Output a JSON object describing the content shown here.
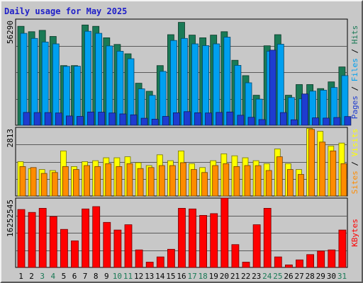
{
  "chart_data": {
    "type": "bar",
    "title": "Daily usage for May 2025",
    "categories": [
      "1",
      "2",
      "3",
      "4",
      "5",
      "6",
      "7",
      "8",
      "9",
      "10",
      "11",
      "12",
      "13",
      "14",
      "15",
      "16",
      "17",
      "18",
      "19",
      "20",
      "21",
      "22",
      "23",
      "24",
      "25",
      "26",
      "27",
      "28",
      "29",
      "30",
      "31"
    ],
    "weekend_days": [
      "3",
      "4",
      "10",
      "11",
      "17",
      "18",
      "24",
      "25",
      "31"
    ],
    "colors": {
      "hits": "#1a7a56",
      "files": "#00a0f0",
      "pages": "#1e3cd0",
      "visits": "#ffff00",
      "sites": "#ff8c00",
      "kbytes": "#ff0000",
      "weekday_label": "#000000",
      "weekend_label": "#1a7a56",
      "title": "#1e1ec8",
      "background": "#c8c8c8"
    },
    "panels": [
      {
        "name": "hits-files-pages",
        "ymax": 56290,
        "ymax_label": "56290",
        "legend": [
          {
            "text": "Hits",
            "color": "#1a7a56"
          },
          {
            "text": "Files",
            "color": "#00a0f0"
          },
          {
            "text": "Pages",
            "color": "#1e3cd0"
          }
        ],
        "series": [
          {
            "name": "Hits",
            "color": "#1a7a56",
            "values": [
              52450,
              49610,
              50320,
              47110,
              31620,
              31620,
              53160,
              52450,
              46400,
              42860,
              37890,
              22290,
              18030,
              31620,
              48040,
              54580,
              47820,
              46400,
              47820,
              49610,
              34450,
              26290,
              15900,
              42150,
              48040,
              15900,
              21580,
              21580,
              19450,
              22990,
              30910
            ]
          },
          {
            "name": "Files",
            "color": "#00a0f0",
            "values": [
              48750,
              46060,
              44140,
              43160,
              31210,
              31300,
              49830,
              48750,
              42060,
              39270,
              35260,
              19280,
              15820,
              28560,
              44960,
              46060,
              43160,
              42200,
              43160,
              46720,
              31760,
              22520,
              13860,
              39270,
              42960,
              14700,
              14000,
              18080,
              18580,
              20010,
              26300
            ]
          },
          {
            "name": "Pages",
            "color": "#1e3cd0",
            "values": [
              6800,
              6700,
              6700,
              6500,
              4900,
              4700,
              7000,
              6900,
              6500,
              6000,
              5500,
              3700,
              3200,
              4700,
              6600,
              7200,
              6600,
              6500,
              6800,
              7000,
              5300,
              4200,
              3000,
              39800,
              6700,
              2900,
              16600,
              3900,
              3800,
              4100,
              4600
            ]
          }
        ]
      },
      {
        "name": "visits-sites",
        "ymax": 2813,
        "ymax_label": "2813",
        "legend": [
          {
            "text": "Visits",
            "color": "#ffff00"
          },
          {
            "text": "Sites",
            "color": "#ff8c00"
          }
        ],
        "series": [
          {
            "name": "Visits",
            "color": "#ffff00",
            "values": [
              1406,
              1125,
              1085,
              1045,
              1848,
              1205,
              1406,
              1446,
              1567,
              1567,
              1607,
              1366,
              1246,
              1687,
              1446,
              1848,
              1326,
              1165,
              1446,
              1728,
              1647,
              1567,
              1446,
              1326,
              1928,
              1326,
              1085,
              2773,
              2652,
              2050,
              2170
            ]
          },
          {
            "name": "Sites",
            "color": "#ff8c00",
            "values": [
              1205,
              1165,
              924,
              964,
              1205,
              1085,
              1246,
              1205,
              1326,
              1205,
              1326,
              1125,
              1165,
              1246,
              1246,
              1366,
              1085,
              964,
              1246,
              1326,
              1205,
              1246,
              1245,
              1045,
              1607,
              1085,
              884,
              2733,
              2210,
              1848,
              1326
            ]
          }
        ]
      },
      {
        "name": "kbytes",
        "ymax": 16252545,
        "ymax_label": "16252545",
        "legend": [
          {
            "text": "KBytes",
            "color": "#ff0000"
          }
        ],
        "series": [
          {
            "name": "KBytes",
            "color": "#ff0000",
            "values": [
              13580000,
              12900000,
              13860000,
              11940000,
              8920000,
              6240000,
              13720000,
              14270000,
              10570000,
              8780000,
              10020000,
              4120000,
              1240000,
              2470000,
              4260000,
              13860000,
              13720000,
              12210000,
              12620000,
              16260000,
              5350000,
              1240000,
              10020000,
              13860000,
              2470000,
              590000,
              1780000,
              3020000,
              3840000,
              4120000,
              8780000
            ]
          }
        ]
      }
    ]
  }
}
